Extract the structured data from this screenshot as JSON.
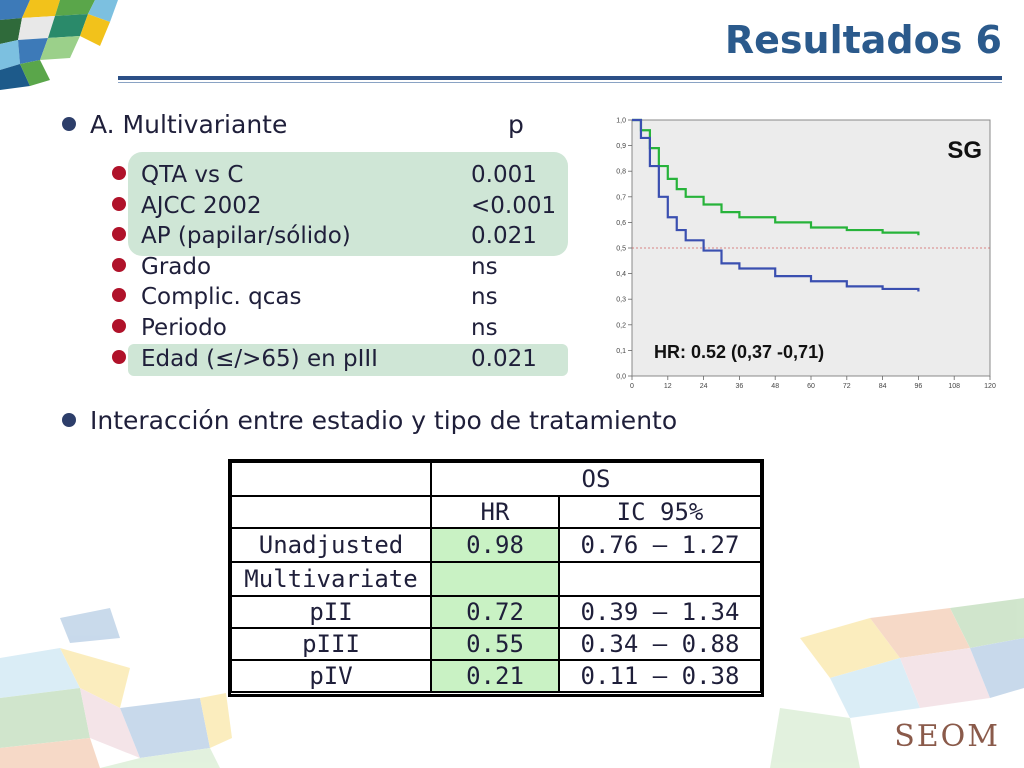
{
  "slide": {
    "title": "Resultados 6",
    "logo": "SEOM"
  },
  "section_a": {
    "heading": "A. Multivariante",
    "p_header": "p",
    "rows": [
      {
        "label": "QTA vs C",
        "p": "0.001"
      },
      {
        "label": "AJCC 2002",
        "p": "<0.001"
      },
      {
        "label": "AP (papilar/sólido)",
        "p": "0.021"
      },
      {
        "label": "Grado",
        "p": "ns"
      },
      {
        "label": "Complic. qcas",
        "p": "ns"
      },
      {
        "label": "Periodo",
        "p": "ns"
      },
      {
        "label": "Edad (≤/>65) en pIII",
        "p": "0.021"
      }
    ]
  },
  "section_b": {
    "heading": "Interacción entre estadio y tipo de tratamiento"
  },
  "chart_data": {
    "type": "line",
    "title": "SG",
    "annotation": "HR: 0.52 (0,37 -0,71)",
    "x_ticks": [
      "0",
      "12",
      "24",
      "36",
      "48",
      "60",
      "72",
      "84",
      "96",
      "108",
      "120"
    ],
    "y_ticks": [
      "0,0",
      "0,1",
      "0,2",
      "0,3",
      "0,4",
      "0,5",
      "0,6",
      "0,7",
      "0,8",
      "0,9",
      "1,0"
    ],
    "xlim": [
      0,
      120
    ],
    "ylim": [
      0,
      1
    ],
    "reference_line_y": 0.5,
    "colors": {
      "upper": "#27b33a",
      "lower": "#3a4fb0",
      "reference": "#d06060"
    },
    "series": [
      {
        "x": [
          0,
          3,
          6,
          9,
          12,
          15,
          18,
          24,
          30,
          36,
          48,
          60,
          72,
          84,
          96
        ],
        "y": [
          1.0,
          0.96,
          0.89,
          0.82,
          0.77,
          0.73,
          0.7,
          0.67,
          0.64,
          0.62,
          0.6,
          0.58,
          0.57,
          0.56,
          0.55
        ]
      },
      {
        "x": [
          0,
          3,
          6,
          9,
          12,
          15,
          18,
          24,
          30,
          36,
          48,
          60,
          72,
          84,
          96
        ],
        "y": [
          1.0,
          0.93,
          0.82,
          0.7,
          0.62,
          0.57,
          0.53,
          0.49,
          0.44,
          0.42,
          0.39,
          0.37,
          0.35,
          0.34,
          0.33
        ]
      }
    ]
  },
  "table": {
    "header_group": "OS",
    "col_hr": "HR",
    "col_ic": "IC 95%",
    "rows": [
      {
        "label": "Unadjusted",
        "hr": "0.98",
        "ic": "0.76 – 1.27"
      },
      {
        "label": "Multivariate",
        "hr": "",
        "ic": ""
      },
      {
        "label": "pII",
        "hr": "0.72",
        "ic": "0.39 – 1.34"
      },
      {
        "label": "pIII",
        "hr": "0.55",
        "ic": "0.34 – 0.88"
      },
      {
        "label": "pIV",
        "hr": "0.21",
        "ic": "0.11 – 0.38"
      }
    ]
  }
}
